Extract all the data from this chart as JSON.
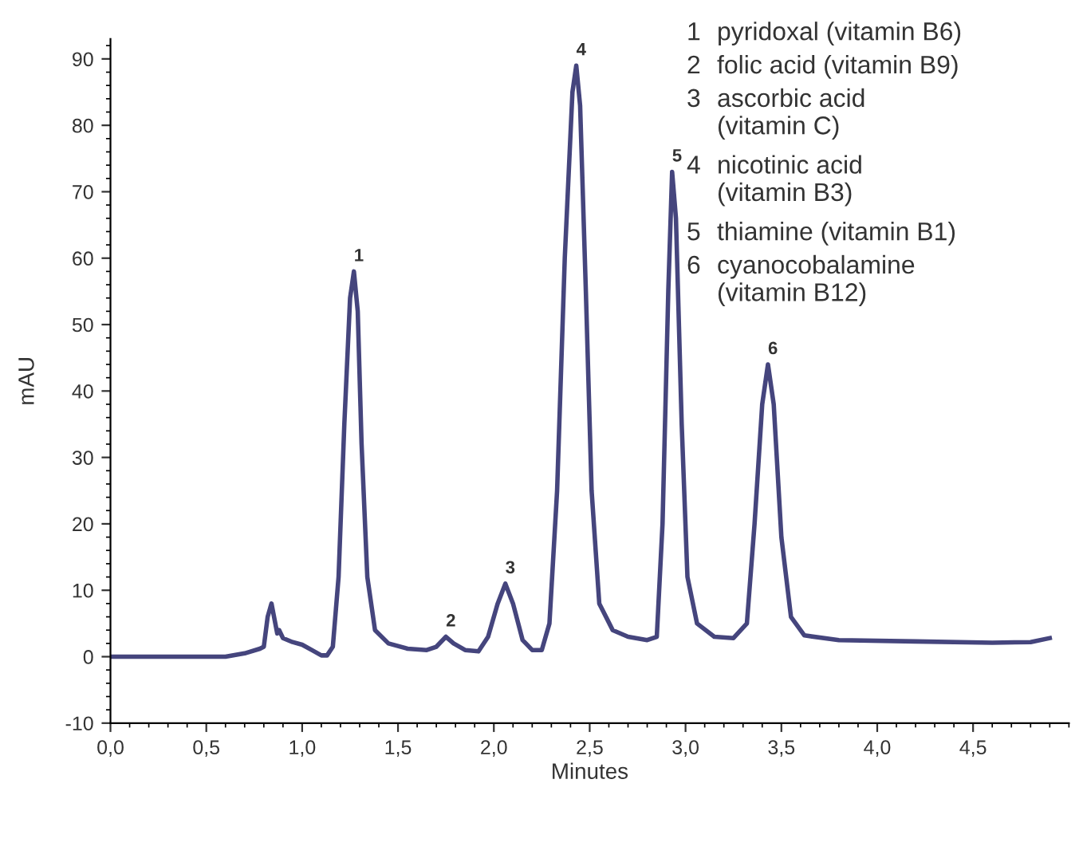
{
  "chart_data": {
    "type": "line",
    "xlabel": "Minutes",
    "ylabel": "mAU",
    "xlim": [
      0,
      5.0
    ],
    "ylim": [
      -10,
      93
    ],
    "xticks": [
      {
        "value": 0,
        "label": "0,0"
      },
      {
        "value": 0.5,
        "label": "0,5"
      },
      {
        "value": 1.0,
        "label": "1,0"
      },
      {
        "value": 1.5,
        "label": "1,5"
      },
      {
        "value": 2.0,
        "label": "2,0"
      },
      {
        "value": 2.5,
        "label": "2,5"
      },
      {
        "value": 3.0,
        "label": "3,0"
      },
      {
        "value": 3.5,
        "label": "3,5"
      },
      {
        "value": 4.0,
        "label": "4,0"
      },
      {
        "value": 4.5,
        "label": "4,5"
      }
    ],
    "yticks": [
      -10,
      0,
      10,
      20,
      30,
      40,
      50,
      60,
      70,
      80,
      90
    ],
    "grid": false,
    "marker": "none",
    "line_style": "solid",
    "series": [
      {
        "color": "#45457d",
        "x": [
          0,
          0.6,
          0.7,
          0.78,
          0.8,
          0.82,
          0.84,
          0.86,
          0.87,
          0.88,
          0.9,
          0.95,
          1.0,
          1.05,
          1.1,
          1.13,
          1.16,
          1.19,
          1.22,
          1.25,
          1.27,
          1.29,
          1.31,
          1.34,
          1.38,
          1.45,
          1.55,
          1.65,
          1.7,
          1.75,
          1.79,
          1.85,
          1.92,
          1.97,
          2.02,
          2.06,
          2.1,
          2.15,
          2.2,
          2.25,
          2.29,
          2.33,
          2.37,
          2.41,
          2.43,
          2.45,
          2.48,
          2.51,
          2.55,
          2.62,
          2.7,
          2.8,
          2.85,
          2.88,
          2.91,
          2.93,
          2.95,
          2.98,
          3.01,
          3.06,
          3.15,
          3.25,
          3.32,
          3.36,
          3.4,
          3.43,
          3.46,
          3.5,
          3.55,
          3.62,
          3.8,
          4.2,
          4.6,
          4.8,
          4.9
        ],
        "values": [
          0,
          0,
          0.5,
          1.2,
          1.5,
          6,
          8,
          5,
          3.5,
          4,
          2.8,
          2.2,
          1.8,
          1.0,
          0.2,
          0.2,
          1.5,
          12,
          35,
          54,
          58,
          52,
          32,
          12,
          4,
          2,
          1.2,
          1.0,
          1.5,
          3,
          2,
          1,
          0.8,
          3,
          8,
          11,
          8,
          2.5,
          1,
          1,
          5,
          25,
          60,
          85,
          89,
          83,
          55,
          25,
          8,
          4,
          3,
          2.5,
          3,
          20,
          55,
          73,
          66,
          35,
          12,
          5,
          3,
          2.8,
          5,
          20,
          38,
          44,
          38,
          18,
          6,
          3.2,
          2.5,
          2.3,
          2.1,
          2.2,
          2.8
        ]
      }
    ],
    "annotations": [
      {
        "text": "1",
        "x": 1.27,
        "y": 58
      },
      {
        "text": "2",
        "x": 1.75,
        "y": 3
      },
      {
        "text": "3",
        "x": 2.06,
        "y": 11
      },
      {
        "text": "4",
        "x": 2.43,
        "y": 89
      },
      {
        "text": "5",
        "x": 2.93,
        "y": 73
      },
      {
        "text": "6",
        "x": 3.43,
        "y": 44
      },
      "1 pyridoxal (vitamin B6)",
      "2 folic acid (vitamin B9)",
      "3 ascorbic acid\n(vitamin C)",
      "4 nicotinic acid\n(vitamin B3)",
      "5 thiamine (vitamin B1)",
      "6 cyanocobalamine\n(vitamin B12)"
    ]
  }
}
